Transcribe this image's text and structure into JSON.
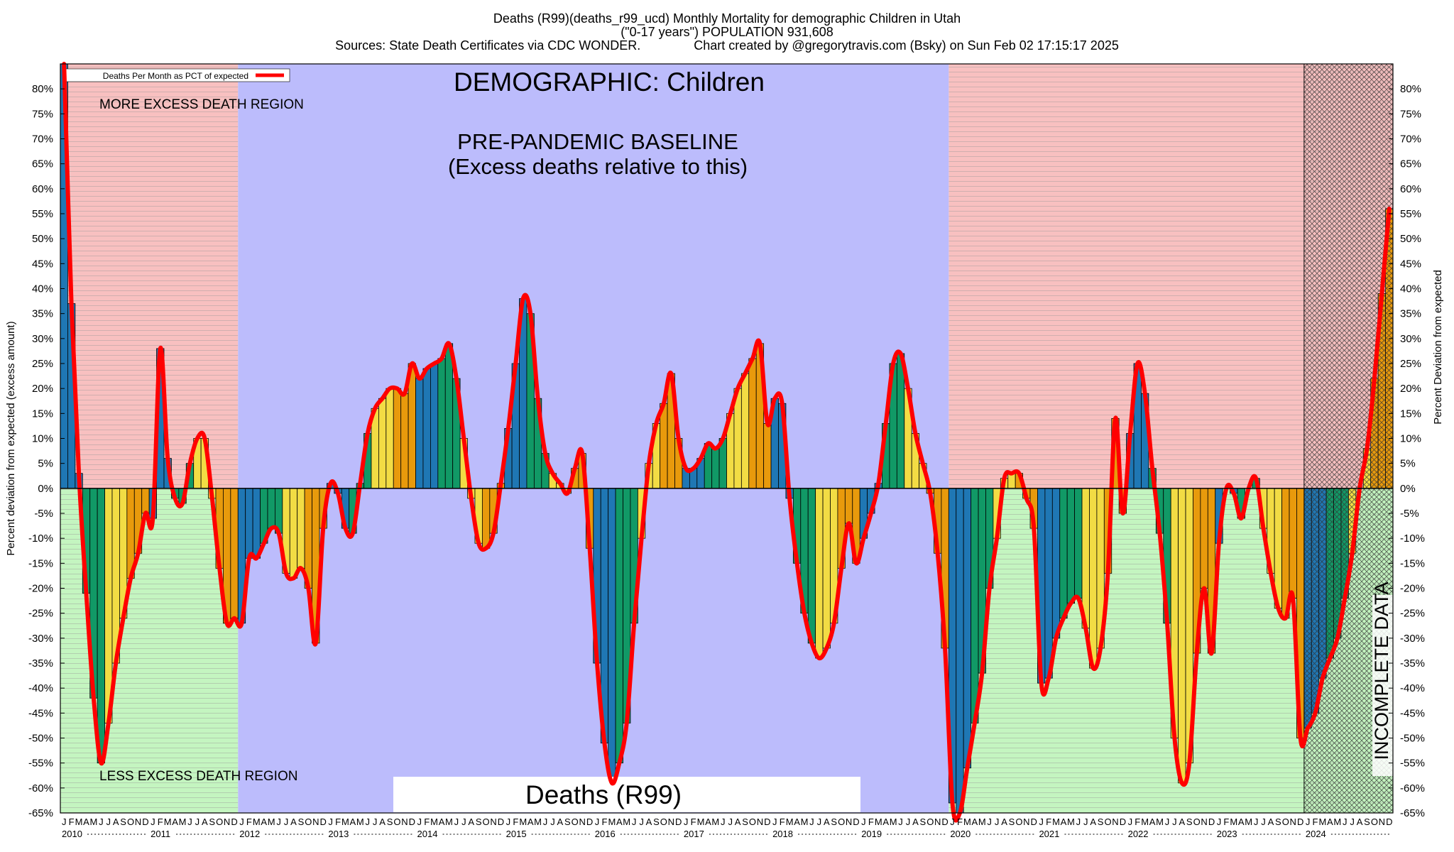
{
  "header": {
    "line1": "Deaths (R99)(deaths_r99_ucd) Monthly Mortality for demographic Children in Utah",
    "line2": "(\"0-17 years\") POPULATION 931,608",
    "line3": "Sources: State Death Certificates via CDC WONDER.               Chart created by @gregorytravis.com (Bsky) on Sun Feb 02 17:15:17 2025"
  },
  "chart_data": {
    "type": "bar",
    "start_year": 2010,
    "end_year": 2024,
    "ylabel": "Percent deviation from expected (excess amount)",
    "ylabel_right": "Percent Deviation from expected",
    "ylim": [
      -65,
      85
    ],
    "y_ticks": [
      80,
      75,
      70,
      65,
      60,
      55,
      50,
      45,
      40,
      35,
      30,
      25,
      20,
      15,
      10,
      5,
      0,
      -5,
      -10,
      -15,
      -20,
      -25,
      -30,
      -35,
      -40,
      -45,
      -50,
      -55,
      -60,
      -65
    ],
    "month_letters": [
      "J",
      "F",
      "M",
      "A",
      "M",
      "J",
      "J",
      "A",
      "S",
      "O",
      "N",
      "D"
    ],
    "year_labels": [
      "2010",
      "2011",
      "2012",
      "2013",
      "2014",
      "2015",
      "2016",
      "2017",
      "2018",
      "2019",
      "2020",
      "2021",
      "2022",
      "2023",
      "2024"
    ],
    "legend": "Deaths Per Month as PCT of expected",
    "series_color": "#ff0000",
    "bar_colors": [
      "#1f77b4",
      "#119966",
      "#f2dc44",
      "#e89a0c"
    ],
    "regions": {
      "more_excess": "MORE EXCESS DEATH REGION",
      "less_excess": "LESS EXCESS DEATH REGION",
      "baseline_title": "PRE-PANDEMIC BASELINE",
      "baseline_subtitle": "(Excess deaths relative to this)",
      "demographic": "DEMOGRAPHIC: Children",
      "incomplete": "INCOMPLETE DATA",
      "cause": "Deaths (R99)",
      "baseline_start_month": 24,
      "baseline_end_month": 120,
      "incomplete_start_month": 168
    },
    "colors": {
      "pink": "#f8c0c0",
      "green": "#c4f5c0",
      "blue": "#bcbcfc"
    },
    "values": [
      85,
      37,
      3,
      -21,
      -42,
      -55,
      -47,
      -35,
      -26,
      -18,
      -13,
      -5,
      -6,
      28,
      6,
      -2,
      -3,
      5,
      10,
      10,
      -2,
      -16,
      -27,
      -26,
      -27,
      -14,
      -14,
      -11,
      -8,
      -9,
      -17,
      -18,
      -16,
      -20,
      -31,
      -8,
      1,
      -1,
      -8,
      -9,
      1,
      11,
      16,
      18,
      20,
      20,
      19,
      25,
      22,
      24,
      25,
      26,
      29,
      22,
      10,
      -2,
      -11,
      -12,
      -9,
      1,
      12,
      25,
      38,
      35,
      18,
      7,
      3,
      1,
      -1,
      4,
      7,
      -12,
      -35,
      -51,
      -59,
      -55,
      -47,
      -27,
      -10,
      5,
      13,
      17,
      23,
      10,
      4,
      4,
      6,
      9,
      8,
      10,
      15,
      20,
      23,
      26,
      29,
      13,
      18,
      17,
      -2,
      -15,
      -25,
      -31,
      -34,
      -32,
      -27,
      -16,
      -7,
      -15,
      -10,
      -5,
      1,
      13,
      25,
      27,
      20,
      11,
      5,
      -1,
      -13,
      -32,
      -63,
      -65,
      -56,
      -47,
      -37,
      -20,
      -10,
      2,
      3,
      3,
      -2,
      -8,
      -39,
      -38,
      -30,
      -26,
      -23,
      -22,
      -28,
      -36,
      -32,
      -17,
      14,
      -5,
      11,
      25,
      19,
      4,
      -9,
      -27,
      -50,
      -59,
      -55,
      -33,
      -20,
      -33,
      -11,
      0,
      -1,
      -6,
      0,
      2,
      -8,
      -17,
      -24,
      -26,
      -22,
      -50,
      -48,
      -45,
      -38,
      -34,
      -30,
      -22,
      -13,
      0,
      8,
      22,
      39,
      56
    ]
  }
}
